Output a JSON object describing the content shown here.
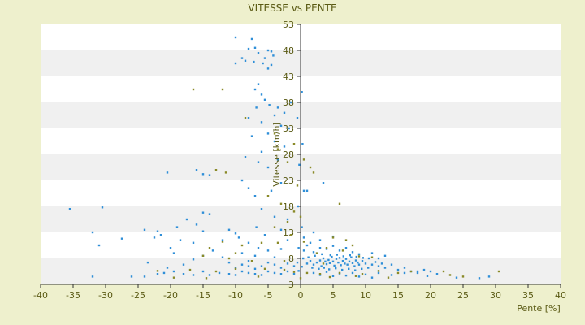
{
  "chart_data": {
    "type": "scatter",
    "title": "VITESSE vs PENTE",
    "xlabel": "Pente [%]",
    "ylabel": "Vitesse [km/h]",
    "xlim": [
      -40,
      40
    ],
    "ylim": [
      3,
      53
    ],
    "xticks": [
      "-40",
      "-35",
      "-30",
      "-25",
      "-20",
      "-15",
      "-10",
      "-5",
      "0",
      "5",
      "10",
      "15",
      "20",
      "25",
      "30",
      "35",
      "40"
    ],
    "yticks": [
      "3",
      "8",
      "13",
      "18",
      "23",
      "28",
      "33",
      "38",
      "43",
      "48",
      "53"
    ],
    "grid": "horizontal banded",
    "legend": "none",
    "colors": {
      "background": "#eef0cd",
      "plot_band_light": "#ffffff",
      "plot_band_dark": "#f0f0f0",
      "text": "#5a5a14",
      "axis": "#333333",
      "series_blue": "#2f8fd8",
      "series_olive": "#8a8a28"
    },
    "series": [
      {
        "color_key": "series_blue",
        "points": [
          [
            -10,
            50.5
          ],
          [
            -7.5,
            50.2
          ],
          [
            -7,
            48.5
          ],
          [
            -8,
            48.3
          ],
          [
            -6.5,
            47.5
          ],
          [
            -5,
            48
          ],
          [
            -4.5,
            47.8
          ],
          [
            -4.2,
            47
          ],
          [
            -5.5,
            46.5
          ],
          [
            -9,
            46.5
          ],
          [
            -10,
            45.5
          ],
          [
            -8.5,
            46
          ],
          [
            -7.2,
            45.8
          ],
          [
            -5.8,
            45.5
          ],
          [
            -4.5,
            45.2
          ],
          [
            -5,
            44.5
          ],
          [
            -6.5,
            41.5
          ],
          [
            -7,
            40.5
          ],
          [
            -6,
            39.5
          ],
          [
            -5.5,
            38.5
          ],
          [
            -4.8,
            37.5
          ],
          [
            -6.8,
            37
          ],
          [
            -3.5,
            37
          ],
          [
            -1.5,
            38
          ],
          [
            -2.5,
            36
          ],
          [
            -4,
            35.5
          ],
          [
            -8,
            35
          ],
          [
            -6,
            34.2
          ],
          [
            -3,
            33.5
          ],
          [
            -1.8,
            33
          ],
          [
            -5,
            32
          ],
          [
            -7.5,
            31.5
          ],
          [
            -4,
            30.5
          ],
          [
            -2.5,
            29.5
          ],
          [
            -6,
            28.5
          ],
          [
            -8.5,
            27.5
          ],
          [
            -3.5,
            27
          ],
          [
            -6.5,
            26.5
          ],
          [
            -5,
            25.5
          ],
          [
            -16,
            25
          ],
          [
            -20.5,
            24.5
          ],
          [
            -14,
            24
          ],
          [
            -15,
            24.2
          ],
          [
            -9,
            23
          ],
          [
            -8,
            21.5
          ],
          [
            -7,
            20
          ],
          [
            -4.5,
            21
          ],
          [
            -3,
            22.5
          ],
          [
            3.5,
            22.5
          ],
          [
            1,
            21
          ],
          [
            -35.5,
            17.5
          ],
          [
            -30.5,
            17.8
          ],
          [
            -15,
            16.8
          ],
          [
            -14,
            16.5
          ],
          [
            -17.5,
            15.5
          ],
          [
            -6,
            17.5
          ],
          [
            -4,
            16
          ],
          [
            -2,
            15.5
          ],
          [
            -32,
            13
          ],
          [
            -24,
            13.5
          ],
          [
            -22,
            13.2
          ],
          [
            -21.5,
            12.5
          ],
          [
            -19,
            14
          ],
          [
            -16,
            14.5
          ],
          [
            -15,
            13.2
          ],
          [
            -11,
            13.5
          ],
          [
            -10,
            12.8
          ],
          [
            -6.8,
            14
          ],
          [
            -31,
            10.5
          ],
          [
            -22.5,
            12
          ],
          [
            -20,
            10
          ],
          [
            -18.5,
            11.5
          ],
          [
            -16.5,
            11
          ],
          [
            -12,
            11.5
          ],
          [
            -9.5,
            12
          ],
          [
            -8,
            11
          ],
          [
            -5.5,
            12.5
          ],
          [
            -3,
            13.5
          ],
          [
            -2,
            11.5
          ],
          [
            -27.5,
            11.8
          ],
          [
            -19.5,
            9
          ],
          [
            -23.5,
            7.2
          ],
          [
            -20.5,
            6.2
          ],
          [
            -18,
            6.8
          ],
          [
            -16.5,
            7.8
          ],
          [
            -15,
            8.5
          ],
          [
            -13.5,
            9.5
          ],
          [
            -12,
            8.2
          ],
          [
            -11,
            7.2
          ],
          [
            -9,
            9
          ],
          [
            -8,
            7.5
          ],
          [
            -7,
            8.5
          ],
          [
            -6.5,
            10
          ],
          [
            -5,
            9.5
          ],
          [
            -4,
            8.2
          ],
          [
            -3,
            9.8
          ],
          [
            -32,
            4.5
          ],
          [
            -26,
            4.5
          ],
          [
            -24,
            4.5
          ],
          [
            -22,
            5
          ],
          [
            -21,
            5.2
          ],
          [
            -19.5,
            5.5
          ],
          [
            -18,
            5
          ],
          [
            -16.5,
            4.8
          ],
          [
            -15,
            5.5
          ],
          [
            -14,
            4.8
          ],
          [
            -12.5,
            5.2
          ],
          [
            -11,
            5
          ],
          [
            -10,
            4.8
          ],
          [
            -9,
            5.5
          ],
          [
            -8,
            5.2
          ],
          [
            -7,
            5
          ],
          [
            -6,
            4.8
          ],
          [
            -5,
            5.5
          ],
          [
            -4,
            5.2
          ],
          [
            -3,
            5
          ],
          [
            -2,
            5.5
          ],
          [
            -1,
            5
          ],
          [
            1,
            7
          ],
          [
            1.5,
            7.5
          ],
          [
            2,
            6.8
          ],
          [
            2.5,
            7.2
          ],
          [
            3,
            7.6
          ],
          [
            3.2,
            6.5
          ],
          [
            3.5,
            8
          ],
          [
            3.8,
            7.4
          ],
          [
            4,
            6.9
          ],
          [
            4.3,
            7.7
          ],
          [
            4.5,
            7.1
          ],
          [
            4.8,
            8.3
          ],
          [
            5,
            7.4
          ],
          [
            5.2,
            6.6
          ],
          [
            5.5,
            7.9
          ],
          [
            5.8,
            7.2
          ],
          [
            6,
            8.1
          ],
          [
            6.2,
            6.7
          ],
          [
            6.5,
            7.5
          ],
          [
            6.8,
            7
          ],
          [
            7,
            7.9
          ],
          [
            7.2,
            6.8
          ],
          [
            7.5,
            7.4
          ],
          [
            7.8,
            8.2
          ],
          [
            8,
            7.1
          ],
          [
            8.3,
            6.5
          ],
          [
            8.5,
            7.6
          ],
          [
            8.8,
            7.2
          ],
          [
            9,
            6.8
          ],
          [
            9.5,
            7.5
          ],
          [
            10,
            7
          ],
          [
            1.2,
            8.2
          ],
          [
            2.2,
            8.5
          ],
          [
            3.3,
            8.8
          ],
          [
            4.6,
            8.6
          ],
          [
            5.6,
            8.7
          ],
          [
            6.6,
            8.4
          ],
          [
            7.6,
            8.6
          ],
          [
            8.6,
            8.3
          ],
          [
            9.6,
            8.1
          ],
          [
            10.5,
            8
          ],
          [
            1.8,
            6.2
          ],
          [
            2.8,
            6
          ],
          [
            3.6,
            6.2
          ],
          [
            4.4,
            5.9
          ],
          [
            5.4,
            6.1
          ],
          [
            6.4,
            5.8
          ],
          [
            7.4,
            6
          ],
          [
            8.4,
            5.7
          ],
          [
            9.4,
            6
          ],
          [
            10.4,
            6.2
          ],
          [
            11,
            6.8
          ],
          [
            11.5,
            7.3
          ],
          [
            12,
            6.5
          ],
          [
            12.5,
            7
          ],
          [
            13,
            6.2
          ],
          [
            14,
            6.8
          ],
          [
            15,
            5.8
          ],
          [
            16,
            6.2
          ],
          [
            17,
            5.5
          ],
          [
            18,
            5.2
          ],
          [
            19,
            5.8
          ],
          [
            20,
            5.5
          ],
          [
            21,
            5
          ],
          [
            2,
            5.2
          ],
          [
            3,
            4.8
          ],
          [
            4,
            5.4
          ],
          [
            5,
            4.6
          ],
          [
            6,
            5.1
          ],
          [
            7,
            4.7
          ],
          [
            8,
            5.2
          ],
          [
            9,
            4.5
          ],
          [
            10,
            4.9
          ],
          [
            11,
            4.3
          ],
          [
            12,
            5.2
          ],
          [
            14,
            4.8
          ],
          [
            16,
            5.2
          ],
          [
            18,
            5.5
          ],
          [
            19.5,
            4.6
          ],
          [
            0.5,
            9.5
          ],
          [
            1,
            10.5
          ],
          [
            1.5,
            11
          ],
          [
            2,
            9.2
          ],
          [
            3,
            10
          ],
          [
            4,
            9.8
          ],
          [
            5,
            10.4
          ],
          [
            6,
            9.5
          ],
          [
            7,
            10
          ],
          [
            8,
            9.2
          ],
          [
            9,
            8.8
          ],
          [
            11,
            9
          ],
          [
            12,
            8
          ],
          [
            13,
            8.5
          ],
          [
            24,
            4.3
          ],
          [
            27.5,
            4.2
          ],
          [
            29,
            4.5
          ],
          [
            0.5,
            12
          ],
          [
            2,
            13
          ],
          [
            3,
            11.5
          ],
          [
            5,
            12.2
          ],
          [
            -1,
            6.5
          ],
          [
            -2,
            7
          ],
          [
            -3,
            6.2
          ],
          [
            -4,
            6.8
          ],
          [
            -5,
            7.2
          ],
          [
            -6,
            6.5
          ],
          [
            -7,
            6
          ],
          [
            -8,
            6.5
          ],
          [
            -9,
            6.8
          ],
          [
            -10,
            6.2
          ],
          [
            0.2,
            40
          ],
          [
            -0.5,
            35
          ],
          [
            0.3,
            30
          ],
          [
            -0.2,
            26
          ],
          [
            0.5,
            21
          ],
          [
            -0.4,
            18
          ],
          [
            0.2,
            14
          ],
          [
            -0.3,
            10
          ],
          [
            0.4,
            8
          ],
          [
            -0.5,
            7.2
          ],
          [
            0.2,
            6.4
          ],
          [
            -0.3,
            5.6
          ]
        ]
      },
      {
        "color_key": "series_olive",
        "points": [
          [
            -16.5,
            40.5
          ],
          [
            -12,
            40.5
          ],
          [
            -8.5,
            35
          ],
          [
            -4,
            32
          ],
          [
            -1,
            30
          ],
          [
            -3.5,
            29
          ],
          [
            0.5,
            27
          ],
          [
            -2,
            26.5
          ],
          [
            1.5,
            25.5
          ],
          [
            2,
            24.5
          ],
          [
            -11.5,
            24.5
          ],
          [
            -13,
            25
          ],
          [
            -0.5,
            22
          ],
          [
            -5,
            20
          ],
          [
            -3,
            18.5
          ],
          [
            -1,
            17
          ],
          [
            0,
            16
          ],
          [
            -2,
            15
          ],
          [
            -4,
            14
          ],
          [
            -1.5,
            12.5
          ],
          [
            0.5,
            11.2
          ],
          [
            -3.5,
            11
          ],
          [
            -6,
            11
          ],
          [
            -9,
            10.5
          ],
          [
            -12,
            11.2
          ],
          [
            -14,
            10
          ],
          [
            -10,
            9
          ],
          [
            6,
            18.5
          ],
          [
            5,
            12
          ],
          [
            7,
            11.5
          ],
          [
            8,
            10.5
          ],
          [
            4,
            10
          ],
          [
            6.5,
            9.5
          ],
          [
            2.5,
            9
          ],
          [
            11,
            8.2
          ],
          [
            9,
            8.4
          ],
          [
            3.5,
            7
          ],
          [
            -2.5,
            7.5
          ],
          [
            -7.5,
            7.5
          ],
          [
            -11,
            8
          ],
          [
            -15,
            8.5
          ],
          [
            -17,
            5.8
          ],
          [
            -13,
            5.5
          ],
          [
            -10,
            6
          ],
          [
            -5.5,
            6
          ],
          [
            -2.5,
            5.8
          ],
          [
            -1,
            5.4
          ],
          [
            1,
            5.2
          ],
          [
            3,
            5
          ],
          [
            6,
            5.2
          ],
          [
            9.5,
            5
          ],
          [
            12,
            5.6
          ],
          [
            15,
            5.2
          ],
          [
            17,
            5.5
          ],
          [
            22,
            5.5
          ],
          [
            23,
            4.8
          ],
          [
            25,
            4.5
          ],
          [
            30.5,
            5.5
          ],
          [
            -22,
            5.6
          ],
          [
            -19.5,
            4.3
          ],
          [
            -14.5,
            4.2
          ],
          [
            -6.5,
            4.5
          ],
          [
            0,
            4.2
          ],
          [
            4.5,
            4.4
          ],
          [
            8.5,
            4.6
          ],
          [
            13.5,
            4.3
          ]
        ]
      }
    ]
  }
}
